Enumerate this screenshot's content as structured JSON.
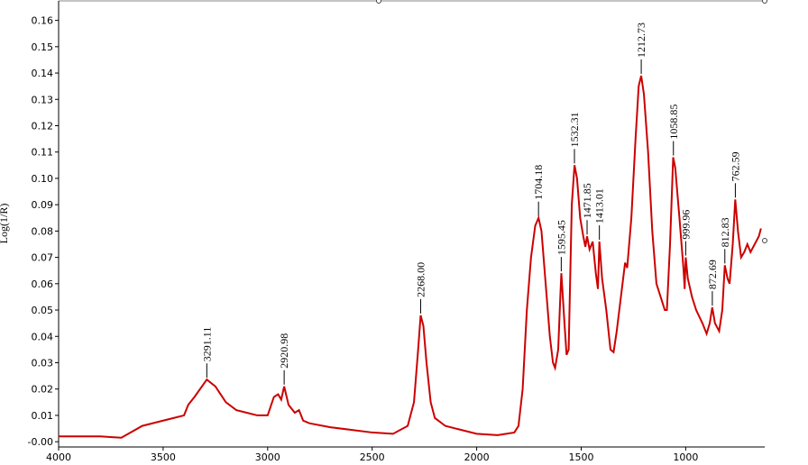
{
  "chart_data": {
    "type": "line",
    "y_label": "Log(1/R)",
    "color": "#cc0000",
    "xlim": [
      4000,
      635
    ],
    "ylim": [
      -0.002,
      0.165
    ],
    "xticks": [
      4000,
      3500,
      3000,
      2500,
      2000,
      1500,
      1000
    ],
    "yticks": [
      {
        "value": 0,
        "label": "-0.00"
      },
      0.01,
      0.02,
      0.03,
      0.04,
      0.05,
      0.06,
      0.07,
      0.08,
      0.09,
      {
        "value": 0.1,
        "label": "0.10"
      },
      0.11,
      0.12,
      0.13,
      0.14,
      0.15,
      0.16
    ],
    "x": [
      4000,
      3800,
      3700,
      3600,
      3500,
      3450,
      3400,
      3380,
      3350,
      3291,
      3250,
      3200,
      3150,
      3100,
      3050,
      3000,
      2970,
      2950,
      2935,
      2921,
      2900,
      2870,
      2850,
      2830,
      2800,
      2700,
      2600,
      2500,
      2400,
      2330,
      2300,
      2280,
      2268,
      2255,
      2240,
      2220,
      2200,
      2150,
      2100,
      2000,
      1900,
      1820,
      1800,
      1780,
      1760,
      1740,
      1720,
      1704,
      1690,
      1670,
      1650,
      1635,
      1625,
      1610,
      1600,
      1595,
      1580,
      1570,
      1560,
      1545,
      1532,
      1520,
      1505,
      1490,
      1480,
      1472,
      1460,
      1445,
      1430,
      1420,
      1413,
      1400,
      1380,
      1360,
      1345,
      1330,
      1310,
      1290,
      1280,
      1260,
      1240,
      1225,
      1213,
      1200,
      1180,
      1160,
      1140,
      1120,
      1100,
      1090,
      1075,
      1060,
      1050,
      1030,
      1010,
      1005,
      1000,
      990,
      970,
      950,
      920,
      900,
      885,
      873,
      860,
      840,
      825,
      813,
      800,
      790,
      775,
      763,
      750,
      735,
      720,
      705,
      690,
      670,
      650,
      640
    ],
    "values": [
      0.002,
      0.002,
      0.0015,
      0.006,
      0.008,
      0.009,
      0.01,
      0.014,
      0.017,
      0.0236,
      0.021,
      0.015,
      0.012,
      0.011,
      0.01,
      0.01,
      0.017,
      0.018,
      0.016,
      0.021,
      0.014,
      0.011,
      0.012,
      0.008,
      0.007,
      0.0055,
      0.0045,
      0.0035,
      0.003,
      0.006,
      0.015,
      0.035,
      0.048,
      0.044,
      0.03,
      0.015,
      0.009,
      0.006,
      0.005,
      0.003,
      0.0025,
      0.0035,
      0.006,
      0.02,
      0.05,
      0.07,
      0.082,
      0.085,
      0.08,
      0.06,
      0.04,
      0.03,
      0.028,
      0.035,
      0.055,
      0.064,
      0.045,
      0.033,
      0.035,
      0.09,
      0.105,
      0.1,
      0.085,
      0.078,
      0.074,
      0.078,
      0.073,
      0.076,
      0.064,
      0.058,
      0.076,
      0.062,
      0.05,
      0.035,
      0.034,
      0.042,
      0.055,
      0.068,
      0.066,
      0.085,
      0.115,
      0.135,
      0.139,
      0.132,
      0.11,
      0.08,
      0.06,
      0.055,
      0.05,
      0.05,
      0.075,
      0.108,
      0.104,
      0.085,
      0.065,
      0.058,
      0.07,
      0.062,
      0.055,
      0.05,
      0.045,
      0.041,
      0.045,
      0.051,
      0.045,
      0.042,
      0.05,
      0.067,
      0.062,
      0.06,
      0.075,
      0.092,
      0.08,
      0.07,
      0.072,
      0.075,
      0.072,
      0.075,
      0.078,
      0.081
    ],
    "annotations": [
      {
        "label": "3291.11",
        "x": 3291.11,
        "y": 0.0236
      },
      {
        "label": "2920.98",
        "x": 2920.98,
        "y": 0.021
      },
      {
        "label": "2268.00",
        "x": 2268,
        "y": 0.048
      },
      {
        "label": "1704.18",
        "x": 1704.18,
        "y": 0.085
      },
      {
        "label": "1595.45",
        "x": 1595.45,
        "y": 0.064
      },
      {
        "label": "1532.31",
        "x": 1532.31,
        "y": 0.105
      },
      {
        "label": "1471.85",
        "x": 1471.85,
        "y": 0.078
      },
      {
        "label": "1413.01",
        "x": 1413.01,
        "y": 0.076
      },
      {
        "label": "1212.73",
        "x": 1212.73,
        "y": 0.139
      },
      {
        "label": "1058.85",
        "x": 1058.85,
        "y": 0.108
      },
      {
        "label": "999.96",
        "x": 999.96,
        "y": 0.07
      },
      {
        "label": "872.69",
        "x": 872.69,
        "y": 0.051
      },
      {
        "label": "812.83",
        "x": 812.83,
        "y": 0.067
      },
      {
        "label": "762.59",
        "x": 762.59,
        "y": 0.092
      }
    ]
  }
}
